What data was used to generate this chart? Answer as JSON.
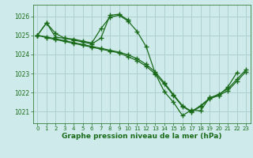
{
  "background_color": "#ceeaea",
  "grid_color": "#aed0d0",
  "line_color": "#1a6b1a",
  "tick_color": "#1a6b1a",
  "xlabel": "Graphe pression niveau de la mer (hPa)",
  "ylim": [
    1020.4,
    1026.6
  ],
  "xlim": [
    -0.5,
    23.5
  ],
  "yticks": [
    1021,
    1022,
    1023,
    1024,
    1025,
    1026
  ],
  "xticks": [
    0,
    1,
    2,
    3,
    4,
    5,
    6,
    7,
    8,
    9,
    10,
    11,
    12,
    13,
    14,
    15,
    16,
    17,
    18,
    19,
    20,
    21,
    22,
    23
  ],
  "line_width": 0.9,
  "marker_size": 4,
  "series1_x": [
    0,
    1,
    2,
    3,
    4,
    5,
    6,
    7,
    8,
    9,
    10,
    11,
    12,
    13,
    14,
    15,
    16,
    17,
    18,
    19,
    20,
    21,
    22
  ],
  "series1_y": [
    1025.0,
    1025.65,
    1025.1,
    1024.85,
    1024.8,
    1024.7,
    1024.6,
    1025.35,
    1025.95,
    1026.05,
    1025.75,
    1025.2,
    1024.4,
    1023.0,
    1022.05,
    1021.5,
    1020.8,
    1021.1,
    1021.05,
    1021.75,
    1021.85,
    1022.3,
    1023.05
  ],
  "series2_x": [
    0,
    1,
    2,
    3,
    4,
    5,
    6,
    7,
    8,
    9,
    10
  ],
  "series2_y": [
    1025.0,
    1025.65,
    1024.9,
    1024.85,
    1024.75,
    1024.65,
    1024.55,
    1024.85,
    1026.05,
    1026.1,
    1025.8
  ],
  "series3_x": [
    0,
    1,
    2,
    3,
    4,
    5,
    6,
    7,
    8,
    9,
    10,
    11,
    12,
    13,
    14,
    15,
    16,
    17,
    18,
    19,
    20,
    21,
    22,
    23
  ],
  "series3_y": [
    1025.0,
    1024.88,
    1024.78,
    1024.68,
    1024.58,
    1024.48,
    1024.38,
    1024.28,
    1024.18,
    1024.08,
    1023.88,
    1023.68,
    1023.38,
    1022.98,
    1022.45,
    1021.85,
    1021.28,
    1020.98,
    1021.28,
    1021.68,
    1021.85,
    1022.1,
    1022.6,
    1023.1
  ],
  "series4_x": [
    0,
    1,
    2,
    3,
    4,
    5,
    6,
    7,
    8,
    9,
    10,
    11,
    12,
    13,
    14,
    15,
    16,
    17,
    18,
    19,
    20,
    21,
    22,
    23
  ],
  "series4_y": [
    1025.0,
    1024.92,
    1024.82,
    1024.72,
    1024.62,
    1024.52,
    1024.42,
    1024.32,
    1024.22,
    1024.12,
    1023.98,
    1023.78,
    1023.48,
    1023.08,
    1022.52,
    1021.9,
    1021.32,
    1021.02,
    1021.32,
    1021.72,
    1021.92,
    1022.2,
    1022.7,
    1023.2
  ]
}
